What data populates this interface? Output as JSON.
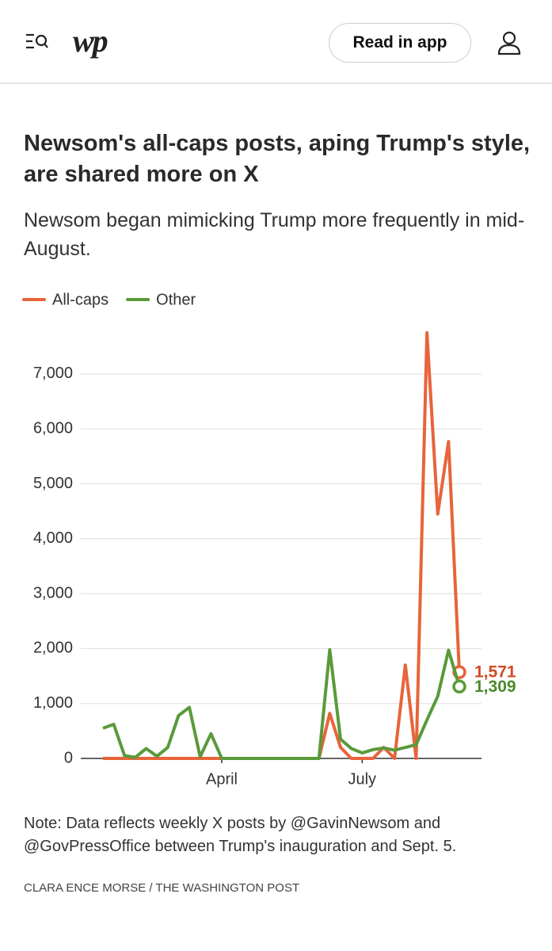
{
  "header": {
    "logo": "wp",
    "button": "Read in app"
  },
  "chart_data": {
    "type": "line",
    "title": "Newsom's all-caps posts, aping Trump's style, are shared more on X",
    "subtitle": "Newsom began mimicking Trump more frequently in mid-August.",
    "categories": [
      null,
      null,
      null,
      null,
      null,
      null,
      null,
      null,
      null,
      null,
      null,
      "April",
      null,
      null,
      null,
      null,
      null,
      null,
      null,
      null,
      null,
      null,
      null,
      null,
      "July",
      null,
      null,
      null,
      null,
      null,
      null,
      null,
      null,
      null
    ],
    "series": [
      {
        "name": "All-caps",
        "color": "#e8643a",
        "label_color": "#d24a20",
        "values": [
          0,
          0,
          0,
          0,
          0,
          0,
          0,
          0,
          0,
          0,
          0,
          0,
          0,
          0,
          0,
          0,
          0,
          0,
          0,
          0,
          0,
          820,
          200,
          0,
          0,
          0,
          200,
          0,
          1700,
          0,
          7750,
          4450,
          5770,
          1571
        ],
        "value_labels": [
          null,
          null,
          null,
          null,
          null,
          null,
          null,
          null,
          null,
          null,
          null,
          null,
          null,
          null,
          null,
          null,
          null,
          null,
          null,
          null,
          null,
          null,
          null,
          null,
          null,
          null,
          null,
          null,
          null,
          null,
          null,
          null,
          null,
          "1,571"
        ]
      },
      {
        "name": "Other",
        "color": "#5a9a3a",
        "label_color": "#4c8a2c",
        "values": [
          550,
          620,
          50,
          20,
          180,
          40,
          200,
          780,
          930,
          30,
          450,
          0,
          0,
          0,
          0,
          0,
          0,
          0,
          0,
          0,
          0,
          1980,
          350,
          180,
          100,
          160,
          190,
          150,
          200,
          250,
          700,
          1130,
          1970,
          1309
        ],
        "value_labels": [
          null,
          null,
          null,
          null,
          null,
          null,
          null,
          null,
          null,
          null,
          null,
          null,
          null,
          null,
          null,
          null,
          null,
          null,
          null,
          null,
          null,
          null,
          null,
          null,
          null,
          null,
          null,
          null,
          null,
          null,
          null,
          null,
          null,
          "1,309"
        ]
      }
    ],
    "ylim": [
      0,
      7750
    ],
    "yticks": [
      0,
      {
        "value": 1000,
        "label": "1,000"
      },
      {
        "value": 2000,
        "label": "2,000"
      },
      {
        "value": 3000,
        "label": "3,000"
      },
      {
        "value": 4000,
        "label": "4,000"
      },
      {
        "value": 5000,
        "label": "5,000"
      },
      {
        "value": 6000,
        "label": "6,000"
      },
      {
        "value": 7000,
        "label": "7,000"
      }
    ],
    "grid": true,
    "note": "Note: Data reflects weekly X posts by @GavinNewsom and @GovPressOffice between Trump's inauguration and Sept. 5.",
    "credit": "CLARA ENCE MORSE / THE WASHINGTON POST"
  }
}
